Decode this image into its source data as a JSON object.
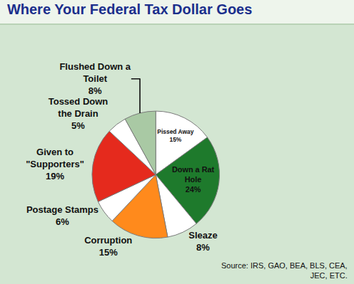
{
  "chart_data": {
    "type": "pie",
    "title": "Where Your Federal Tax Dollar Goes",
    "categories": [
      "Pissed Away",
      "Down a Rat Hole",
      "Sleaze",
      "Corruption",
      "Postage Stamps",
      "Given to \"Supporters\"",
      "Tossed Down the Drain",
      "Flushed Down a Toilet"
    ],
    "values": [
      15,
      24,
      8,
      15,
      6,
      19,
      5,
      8
    ],
    "value_labels": [
      "15%",
      "24%",
      "8%",
      "15%",
      "6%",
      "19%",
      "5%",
      "8%"
    ],
    "colors": [
      "#ffffff",
      "#1e7a2c",
      "#ffffff",
      "#ff8a1c",
      "#ffffff",
      "#e52a1d",
      "#ffffff",
      "#a9c9a4"
    ],
    "data_labels": true,
    "annotations": [
      "Source: IRS, GAO, BEA, BLS, CEA,\nJEC, ETC."
    ]
  }
}
